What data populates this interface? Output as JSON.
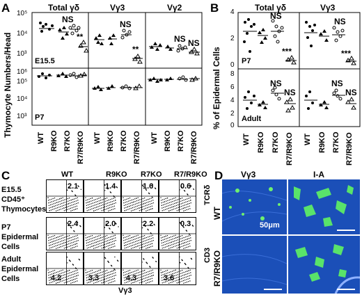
{
  "panels": {
    "a": "A",
    "b": "B",
    "c": "C",
    "d": "D"
  },
  "groups": [
    "WT",
    "R9KO",
    "R7KO",
    "R7/R9KO"
  ],
  "panel_a": {
    "ylabel": "Thymocyte Numbers/Head",
    "columns": [
      "Total γδ",
      "Vγ3",
      "Vγ2"
    ],
    "rows": [
      "E15.5",
      "P7"
    ],
    "yticks_top": [
      "10⁵",
      "10⁴",
      "10³"
    ],
    "yticks_bottom": [
      "10⁶",
      "10⁵",
      "10⁴",
      "10³"
    ],
    "sig_top": [
      [
        "",
        "NS",
        "**"
      ],
      [
        "",
        "NS",
        "**"
      ],
      [
        "",
        "NS",
        "NS"
      ]
    ]
  },
  "panel_b": {
    "ylabel": "% of Epidermal Cells",
    "columns": [
      "Total γδ",
      "Vγ3"
    ],
    "rows": [
      "P7",
      "Adult"
    ],
    "yticks_top": [
      "4",
      "2",
      "0"
    ],
    "yticks_bottom": [
      "8",
      "6",
      "4",
      "2",
      "0"
    ],
    "sig_top": [
      [
        "",
        "",
        "NS",
        "***"
      ],
      [
        "",
        "",
        "NS",
        "***"
      ]
    ],
    "sig_bottom": [
      [
        "",
        "",
        "NS",
        "NS"
      ],
      [
        "",
        "",
        "NS",
        "NS"
      ]
    ]
  },
  "panel_c": {
    "row_labels": [
      "E15.5 CD45⁺ Thymocytes",
      "P7 Epidermal Cells",
      "Adult Epidermal Cells"
    ],
    "y_axis_labels": [
      "TCRδ",
      "CD3"
    ],
    "x_axis_label": "Vγ3",
    "values": [
      [
        "2.1",
        "1.4",
        "1.6",
        "0.6"
      ],
      [
        "2.4",
        "2.0",
        "2.2",
        "0.3"
      ],
      [
        "4.2",
        "3.3",
        "4.3",
        "3.6"
      ]
    ]
  },
  "panel_d": {
    "col_labels": [
      "Vγ3",
      "I-A"
    ],
    "row_labels": [
      "WT",
      "R7/R9KO"
    ],
    "scale_label": "50μm"
  }
}
